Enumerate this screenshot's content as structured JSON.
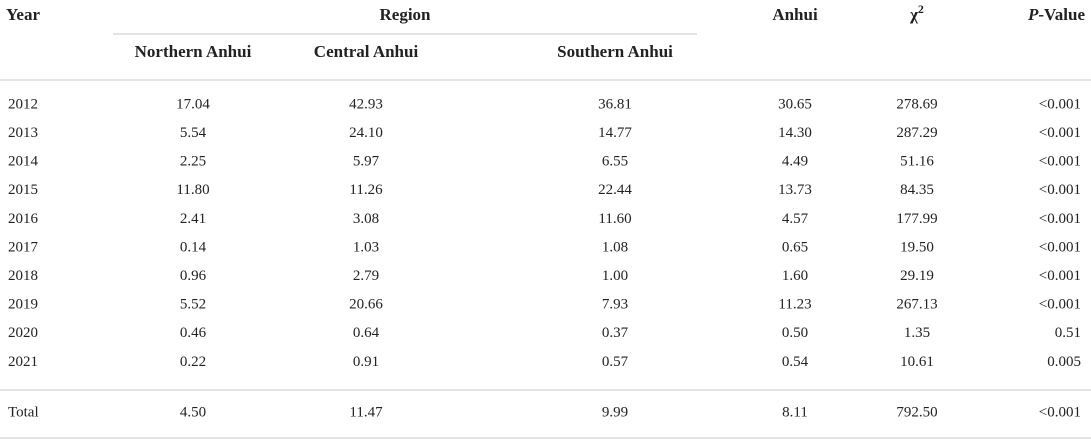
{
  "header": {
    "year": "Year",
    "region": "Region",
    "northern": "Northern Anhui",
    "central": "Central Anhui",
    "southern": "Southern Anhui",
    "anhui": "Anhui",
    "chi": "χ",
    "chi_sup": "2",
    "p": "P",
    "p_suffix": "-Value"
  },
  "table": {
    "rows": [
      [
        "2012",
        "17.04",
        "42.93",
        "36.81",
        "30.65",
        "278.69",
        "<0.001"
      ],
      [
        "2013",
        "5.54",
        "24.10",
        "14.77",
        "14.30",
        "287.29",
        "<0.001"
      ],
      [
        "2014",
        "2.25",
        "5.97",
        "6.55",
        "4.49",
        "51.16",
        "<0.001"
      ],
      [
        "2015",
        "11.80",
        "11.26",
        "22.44",
        "13.73",
        "84.35",
        "<0.001"
      ],
      [
        "2016",
        "2.41",
        "3.08",
        "11.60",
        "4.57",
        "177.99",
        "<0.001"
      ],
      [
        "2017",
        "0.14",
        "1.03",
        "1.08",
        "0.65",
        "19.50",
        "<0.001"
      ],
      [
        "2018",
        "0.96",
        "2.79",
        "1.00",
        "1.60",
        "29.19",
        "<0.001"
      ],
      [
        "2019",
        "5.52",
        "20.66",
        "7.93",
        "11.23",
        "267.13",
        "<0.001"
      ],
      [
        "2020",
        "0.46",
        "0.64",
        "0.37",
        "0.50",
        "1.35",
        "0.51"
      ],
      [
        "2021",
        "0.22",
        "0.91",
        "0.57",
        "0.54",
        "10.61",
        "0.005"
      ]
    ],
    "total": [
      "Total",
      "4.50",
      "11.47",
      "9.99",
      "8.11",
      "792.50",
      "<0.001"
    ]
  }
}
